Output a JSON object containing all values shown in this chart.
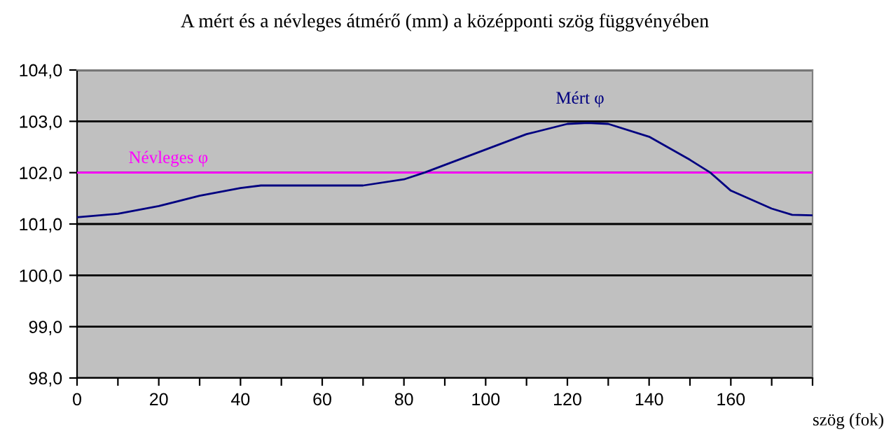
{
  "chart_data": {
    "type": "line",
    "title": "A mért és a névleges átmérő (mm) a középponti szög függvényében",
    "xlabel": "szög (fok)",
    "series": [
      {
        "name": "Névleges φ",
        "color": "#ff00ff",
        "x": [
          0,
          180
        ],
        "values": [
          102.0,
          102.0
        ]
      },
      {
        "name": "Mért φ",
        "color": "#000080",
        "x": [
          0,
          10,
          20,
          30,
          40,
          45,
          60,
          70,
          80,
          85,
          90,
          100,
          110,
          120,
          125,
          130,
          140,
          150,
          155,
          160,
          170,
          175,
          180
        ],
        "values": [
          101.13,
          101.2,
          101.35,
          101.55,
          101.7,
          101.75,
          101.75,
          101.75,
          101.87,
          102.0,
          102.15,
          102.45,
          102.75,
          102.95,
          102.97,
          102.95,
          102.7,
          102.25,
          102.0,
          101.65,
          101.3,
          101.18,
          101.17
        ]
      }
    ],
    "xlim": [
      0,
      180
    ],
    "xticks": [
      0,
      {
        "value": 10,
        "label": null
      },
      20,
      {
        "value": 30,
        "label": null
      },
      40,
      {
        "value": 50,
        "label": null
      },
      60,
      {
        "value": 70,
        "label": null
      },
      80,
      {
        "value": 90,
        "label": null
      },
      100,
      {
        "value": 110,
        "label": null
      },
      120,
      {
        "value": 130,
        "label": null
      },
      140,
      {
        "value": 150,
        "label": null
      },
      160,
      {
        "value": 170,
        "label": null
      },
      {
        "value": 180,
        "label": null
      }
    ],
    "ylim": [
      98,
      104
    ],
    "yticks": [
      {
        "value": 98,
        "label": "98,0"
      },
      {
        "value": 99,
        "label": "99,0"
      },
      {
        "value": 100,
        "label": "100,0"
      },
      {
        "value": 101,
        "label": "101,0"
      },
      {
        "value": 102,
        "label": "102,0"
      },
      {
        "value": 103,
        "label": "103,0"
      },
      {
        "value": 104,
        "label": "104,0"
      }
    ],
    "grid": "y",
    "legend": false,
    "marker": "none",
    "line_style": "solid"
  }
}
